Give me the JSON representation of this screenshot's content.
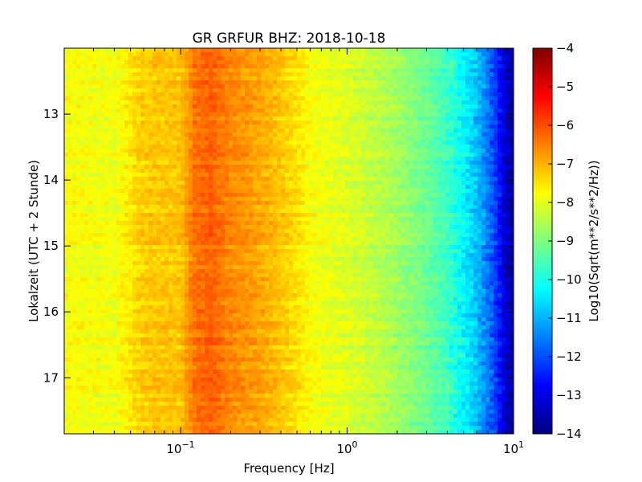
{
  "chart_data": {
    "type": "heatmap",
    "title": "GR GRFUR BHZ: 2018-10-18",
    "xlabel": "Frequency [Hz]",
    "ylabel": "Lokalzeit (UTC + 2 Stunde)",
    "colorbar_label": "Log10(Sqrt(m**2/s**2/Hz))",
    "x_scale": "log",
    "xlim": [
      0.02,
      10
    ],
    "ylim": [
      12.0,
      17.85
    ],
    "y_inverted": true,
    "clim": [
      -14,
      -4
    ],
    "colormap": "jet",
    "x_ticks": [
      {
        "value": 0.1,
        "base": "10",
        "exp": "−1"
      },
      {
        "value": 1,
        "base": "10",
        "exp": "0"
      },
      {
        "value": 10,
        "base": "10",
        "exp": "1"
      }
    ],
    "y_ticks": [
      {
        "value": 13,
        "label": "13"
      },
      {
        "value": 14,
        "label": "14"
      },
      {
        "value": 15,
        "label": "15"
      },
      {
        "value": 16,
        "label": "16"
      },
      {
        "value": 17,
        "label": "17"
      }
    ],
    "colorbar_ticks": [
      {
        "value": -4,
        "label": "−4"
      },
      {
        "value": -5,
        "label": "−5"
      },
      {
        "value": -6,
        "label": "−6"
      },
      {
        "value": -7,
        "label": "−7"
      },
      {
        "value": -8,
        "label": "−8"
      },
      {
        "value": -9,
        "label": "−9"
      },
      {
        "value": -10,
        "label": "−10"
      },
      {
        "value": -11,
        "label": "−11"
      },
      {
        "value": -12,
        "label": "−12"
      },
      {
        "value": -13,
        "label": "−13"
      },
      {
        "value": -14,
        "label": "−14"
      }
    ],
    "spectrum_profile": {
      "frequency_hz": [
        0.02,
        0.04,
        0.058,
        0.07,
        0.1,
        0.12,
        0.15,
        0.2,
        0.3,
        0.4,
        0.5,
        0.6,
        0.8,
        1,
        1.5,
        2,
        3,
        4,
        5,
        6,
        7,
        8,
        9,
        10
      ],
      "log10_psd": [
        -7.8,
        -7.9,
        -7.3,
        -7.2,
        -7.2,
        -6.4,
        -6.2,
        -6.6,
        -6.9,
        -7.2,
        -7.5,
        -7.8,
        -8.0,
        -8.1,
        -8.4,
        -8.7,
        -9.2,
        -9.7,
        -10.3,
        -10.9,
        -11.6,
        -12.4,
        -13.3,
        -13.9
      ]
    }
  }
}
